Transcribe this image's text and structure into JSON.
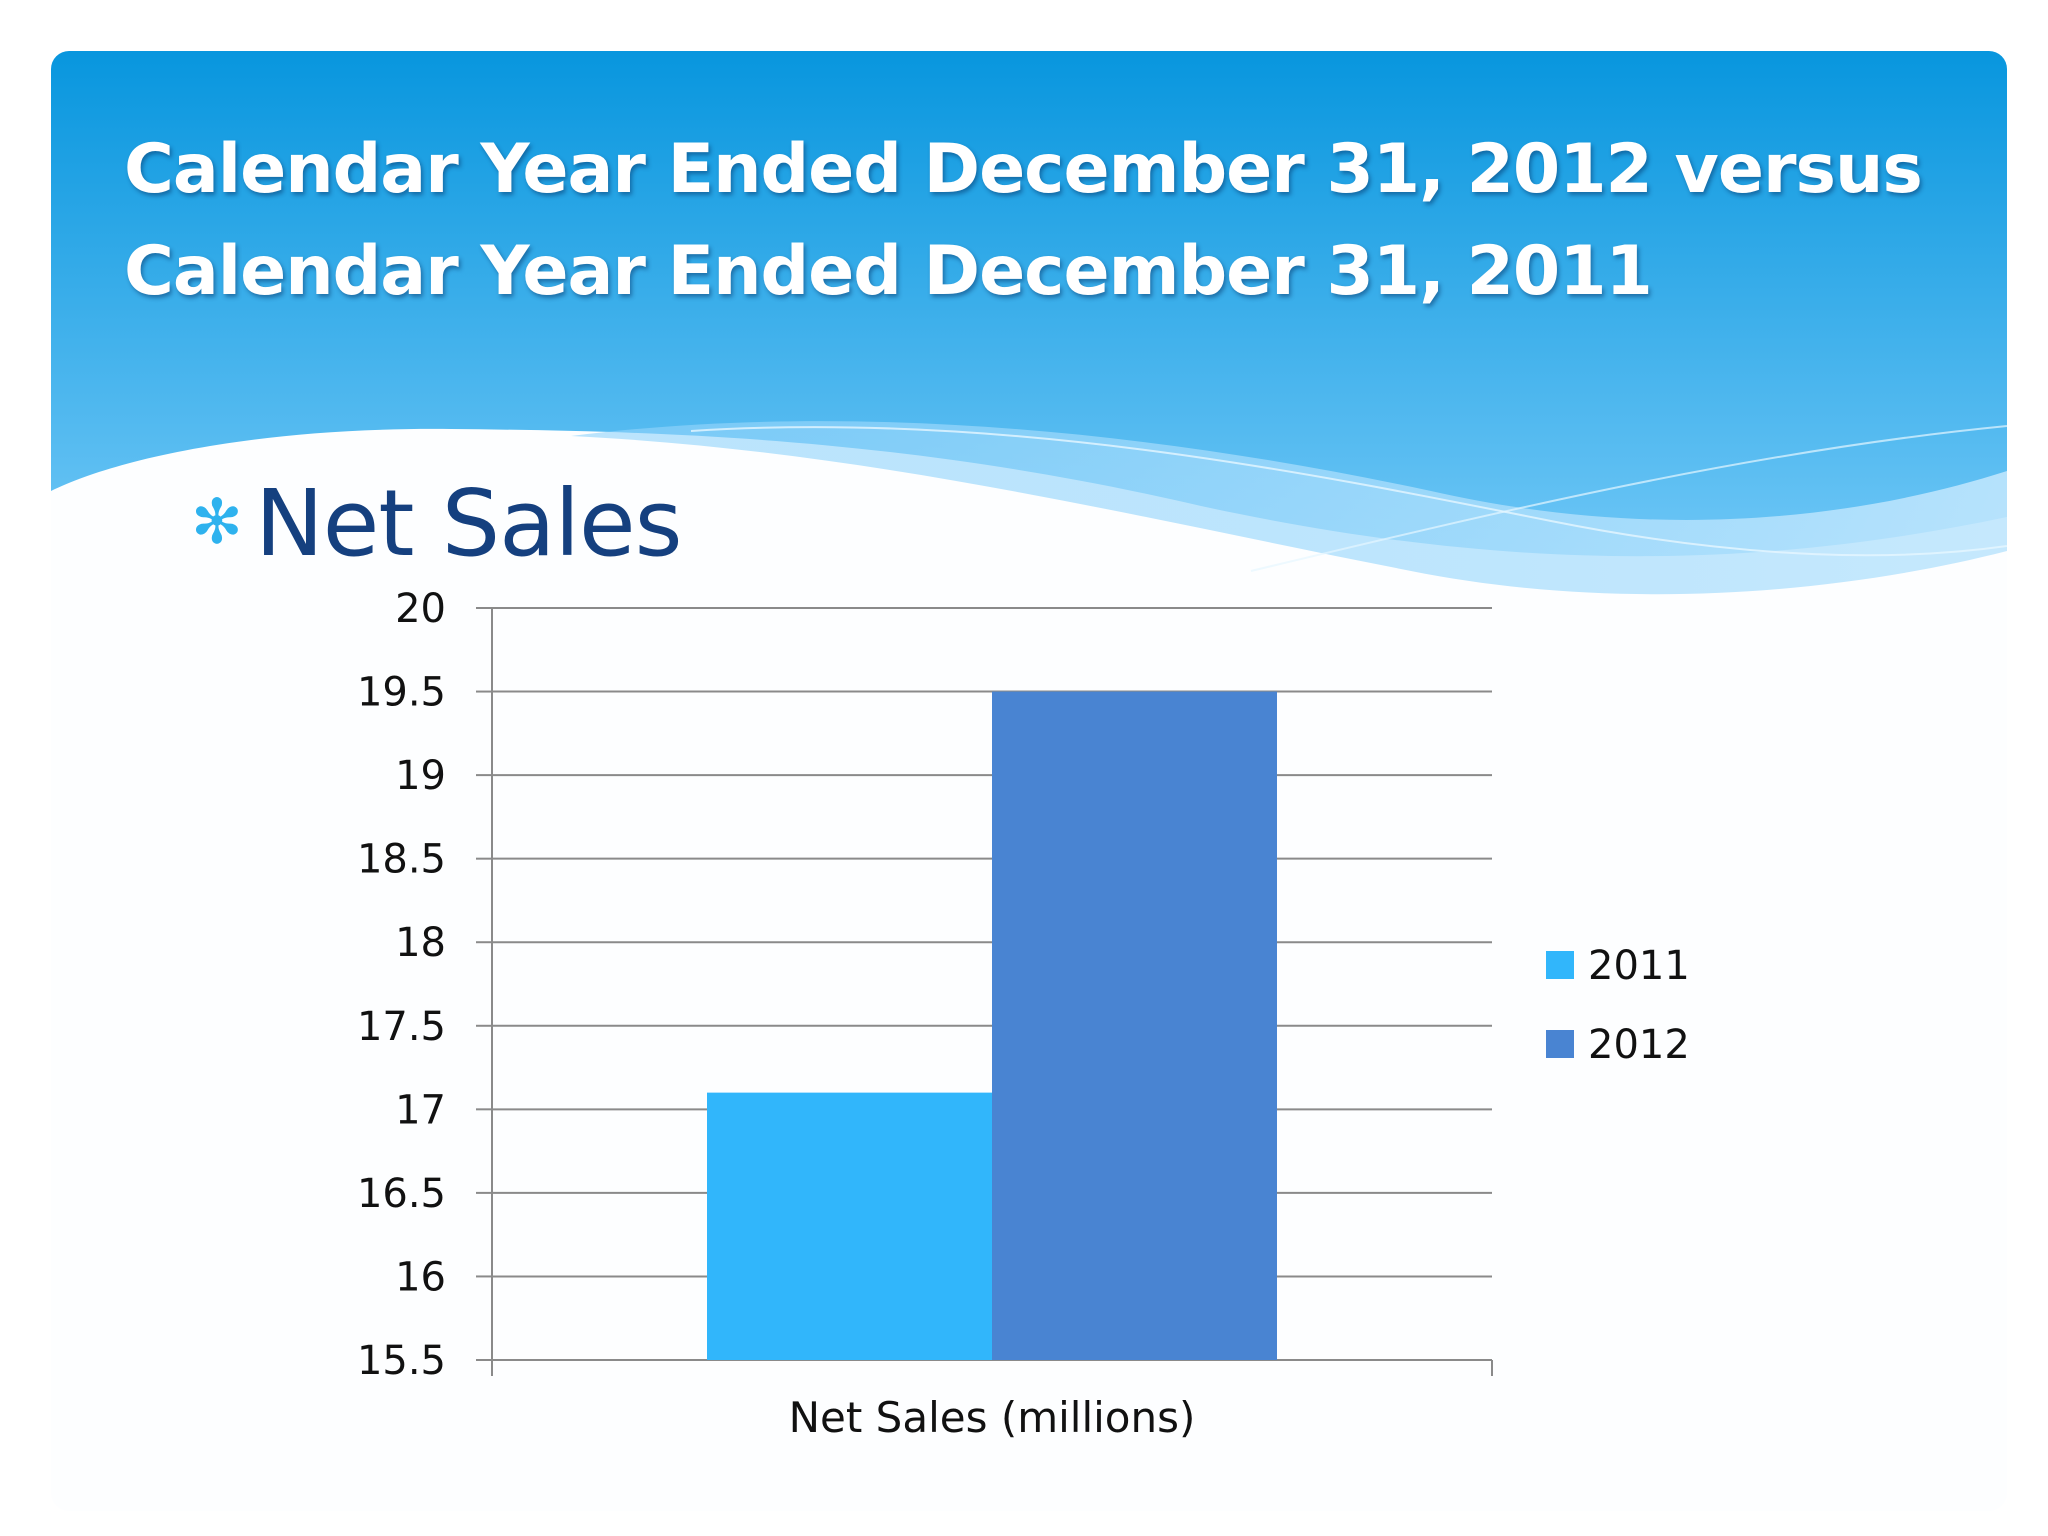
{
  "slide": {
    "title_line1": "Calendar Year Ended December 31, 2012 versus",
    "title_line2": "Calendar Year Ended December 31, 2011",
    "bullet_icon": "asterisk-icon",
    "bullet_text": "Net Sales"
  },
  "colors": {
    "header_top": "#0896de",
    "header_bottom": "#6dc6f6",
    "title_text": "#ffffff",
    "bullet_text": "#15407f",
    "bullet_icon": "#2eb2ee",
    "gridline": "#8a8a8a"
  },
  "chart_data": {
    "type": "bar",
    "categories": [
      "Net Sales (millions)"
    ],
    "series": [
      {
        "name": "2011",
        "values": [
          17.1
        ],
        "color": "#31b6fb"
      },
      {
        "name": "2012",
        "values": [
          19.5
        ],
        "color": "#4984d2"
      }
    ],
    "xlabel": "",
    "ylabel": "",
    "ylim": [
      15.5,
      20
    ],
    "yticks": [
      "15.5",
      "16",
      "16.5",
      "17",
      "17.5",
      "18",
      "18.5",
      "19",
      "19.5",
      "20"
    ],
    "grid": true,
    "legend": "right"
  }
}
